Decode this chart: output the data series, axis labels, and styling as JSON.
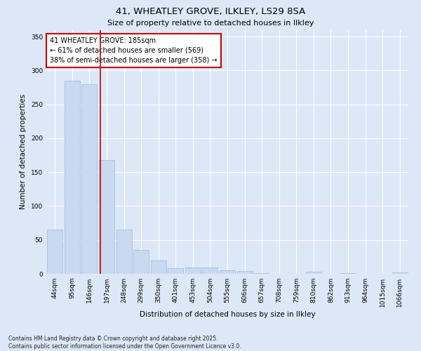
{
  "title_line1": "41, WHEATLEY GROVE, ILKLEY, LS29 8SA",
  "title_line2": "Size of property relative to detached houses in Ilkley",
  "xlabel": "Distribution of detached houses by size in Ilkley",
  "ylabel": "Number of detached properties",
  "bar_labels": [
    "44sqm",
    "95sqm",
    "146sqm",
    "197sqm",
    "248sqm",
    "299sqm",
    "350sqm",
    "401sqm",
    "453sqm",
    "504sqm",
    "555sqm",
    "606sqm",
    "657sqm",
    "708sqm",
    "759sqm",
    "810sqm",
    "862sqm",
    "913sqm",
    "964sqm",
    "1015sqm",
    "1066sqm"
  ],
  "bar_values": [
    65,
    285,
    280,
    168,
    65,
    35,
    20,
    8,
    9,
    9,
    5,
    4,
    1,
    0,
    0,
    3,
    0,
    1,
    0,
    0,
    2
  ],
  "bar_color": "#c9d9f0",
  "bar_edge_color": "#a0b8d8",
  "vline_position": 2.65,
  "vline_color": "#cc0000",
  "annotation_text": "41 WHEATLEY GROVE: 185sqm\n← 61% of detached houses are smaller (569)\n38% of semi-detached houses are larger (358) →",
  "annotation_box_color": "#ffffff",
  "annotation_box_edge": "#cc0000",
  "ylim": [
    0,
    360
  ],
  "yticks": [
    0,
    50,
    100,
    150,
    200,
    250,
    300,
    350
  ],
  "background_color": "#dce8f8",
  "plot_bg_color": "#dce8f8",
  "grid_color": "#ffffff",
  "footer_text": "Contains HM Land Registry data © Crown copyright and database right 2025.\nContains public sector information licensed under the Open Government Licence v3.0.",
  "title_fontsize": 9.5,
  "subtitle_fontsize": 8.0,
  "tick_fontsize": 6.5,
  "label_fontsize": 7.5,
  "annotation_fontsize": 7.0,
  "footer_fontsize": 5.5
}
